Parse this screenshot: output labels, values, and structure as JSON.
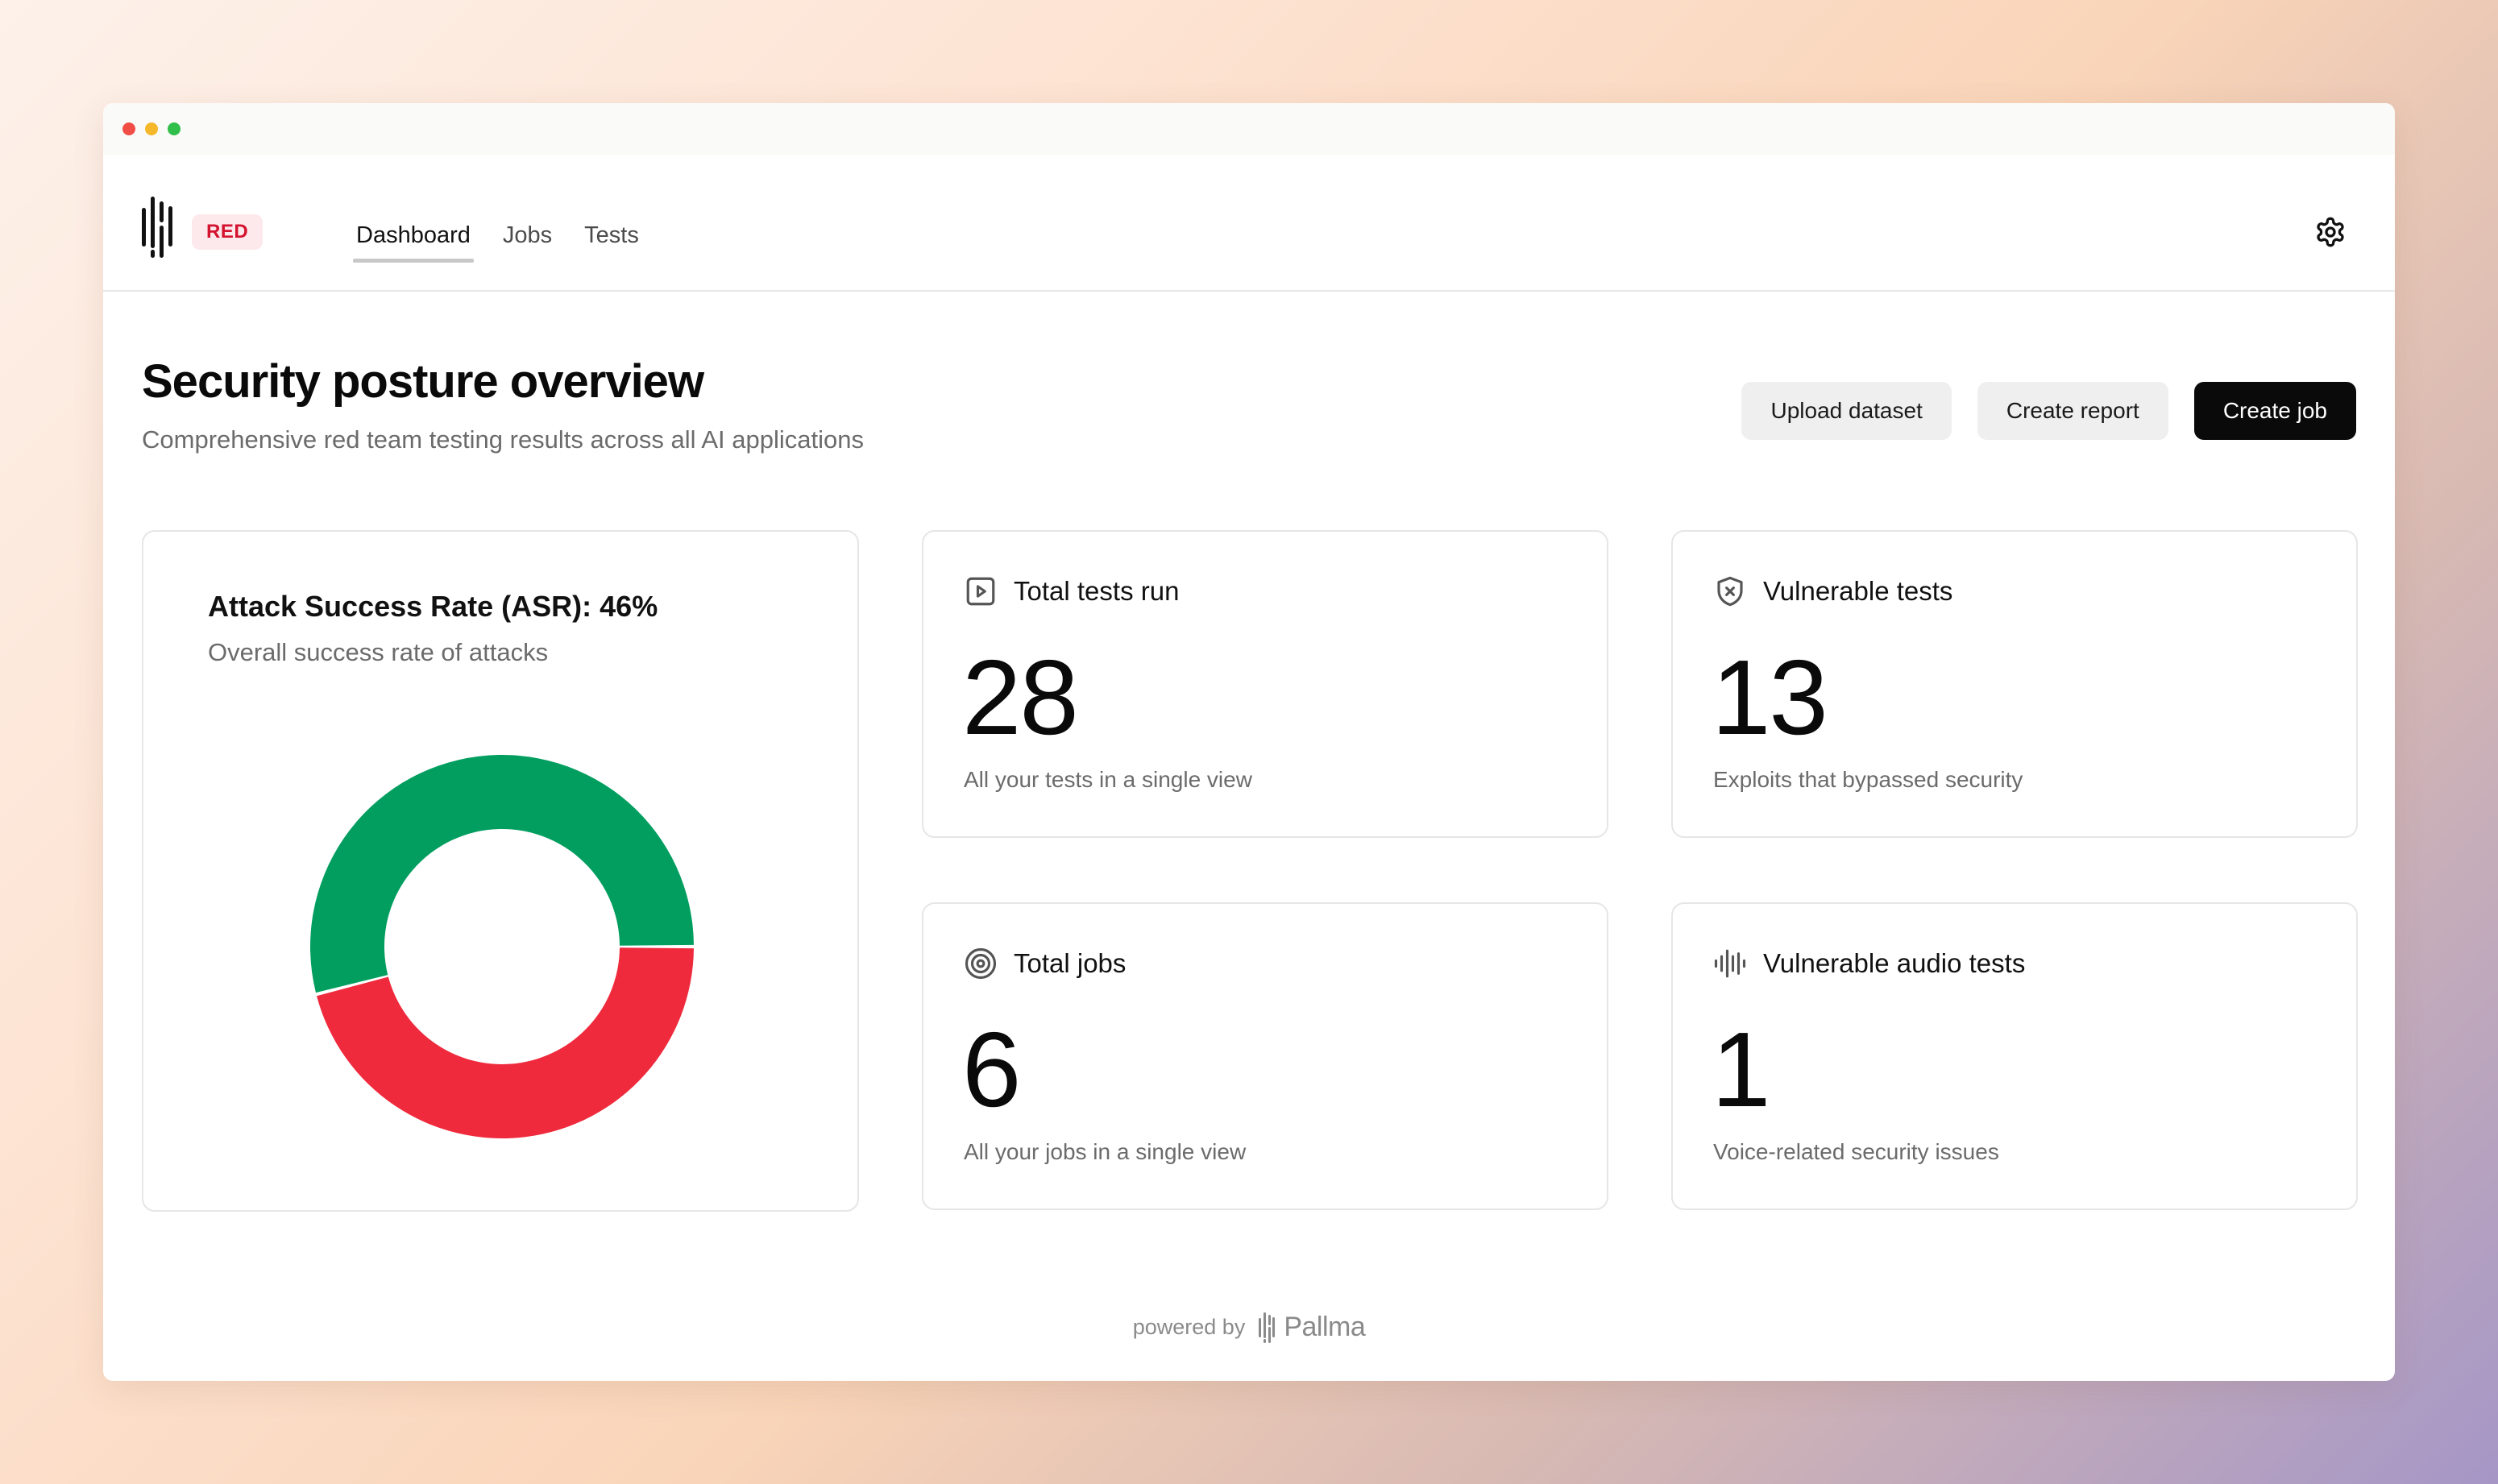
{
  "window": {
    "controls": [
      "close",
      "minimize",
      "maximize"
    ]
  },
  "nav": {
    "badge": "RED",
    "tabs": [
      {
        "label": "Dashboard",
        "active": true
      },
      {
        "label": "Jobs",
        "active": false
      },
      {
        "label": "Tests",
        "active": false
      }
    ],
    "settings_icon": "gear-icon"
  },
  "header": {
    "title": "Security posture overview",
    "subtitle": "Comprehensive red team testing results across all AI applications",
    "buttons": {
      "upload": "Upload dataset",
      "report": "Create report",
      "create_job": "Create job"
    }
  },
  "asr": {
    "title": "Attack Success Rate (ASR): 46%",
    "subtitle": "Overall success rate of attacks"
  },
  "chart_data": {
    "type": "pie",
    "donut": true,
    "title": "Attack Success Rate (ASR): 46%",
    "slices": [
      {
        "value": 54,
        "color": "#029e5f"
      },
      {
        "value": 46,
        "color": "#ef2a3c"
      }
    ]
  },
  "stats": [
    {
      "label": "Total tests run",
      "value": "28",
      "description": "All your tests in a single view",
      "icon": "play-square-icon"
    },
    {
      "label": "Vulnerable tests",
      "value": "13",
      "description": "Exploits that bypassed security",
      "icon": "shield-x-icon"
    },
    {
      "label": "Total jobs",
      "value": "6",
      "description": "All your jobs in a single view",
      "icon": "target-icon"
    },
    {
      "label": "Vulnerable audio tests",
      "value": "1",
      "description": "Voice-related security issues",
      "icon": "audio-waveform-icon"
    }
  ],
  "footer": {
    "prefix": "powered by",
    "brand": "Pallma"
  },
  "colors": {
    "accent_red": "#d4132f",
    "badge_bg": "#fde9ec",
    "primary_button": "#0a0a0a",
    "secure": "#029e5f",
    "vulnerable": "#ef2a3c"
  }
}
